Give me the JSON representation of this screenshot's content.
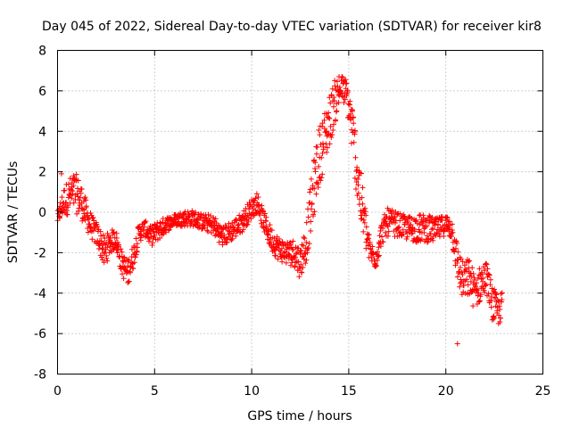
{
  "chart_data": {
    "type": "scatter",
    "title": "Day 045 of 2022, Sidereal Day-to-day VTEC variation (SDTVAR) for receiver kir8",
    "xlabel": "GPS time / hours",
    "ylabel": "SDTVAR / TECUs",
    "xlim": [
      0,
      25
    ],
    "ylim": [
      -8,
      8
    ],
    "xticks": [
      0,
      5,
      10,
      15,
      20,
      25
    ],
    "yticks": [
      -8,
      -6,
      -4,
      -2,
      0,
      2,
      4,
      6,
      8
    ],
    "xtick_labels": [
      "0",
      "5",
      "10",
      "15",
      "20",
      "25"
    ],
    "ytick_labels": [
      "-8",
      "-6",
      "-4",
      "-2",
      "0",
      "2",
      "4",
      "6",
      "8"
    ],
    "grid": true,
    "marker": "+",
    "color": "#ff0000",
    "series": [
      {
        "name": "SDTVAR",
        "envelope_x": [
          0.0,
          0.3,
          0.6,
          0.9,
          1.2,
          1.5,
          1.8,
          2.1,
          2.4,
          2.7,
          3.0,
          3.3,
          3.6,
          3.9,
          4.2,
          4.5,
          4.8,
          5.2,
          5.6,
          6.0,
          6.5,
          7.0,
          7.5,
          8.0,
          8.5,
          9.0,
          9.5,
          10.0,
          10.3,
          10.6,
          11.0,
          11.4,
          11.8,
          12.2,
          12.5,
          12.8,
          13.1,
          13.4,
          13.7,
          14.0,
          14.3,
          14.6,
          14.9,
          15.2,
          15.5,
          15.8,
          16.1,
          16.4,
          16.7,
          17.0,
          17.5,
          18.0,
          18.5,
          19.0,
          19.5,
          20.0,
          20.3,
          20.6,
          20.9,
          21.2,
          21.5,
          21.8,
          22.1,
          22.4,
          22.7,
          22.9
        ],
        "envelope_y": [
          -0.3,
          0.5,
          0.8,
          1.0,
          0.6,
          -0.2,
          -0.8,
          -1.2,
          -2.0,
          -1.5,
          -1.3,
          -2.5,
          -3.0,
          -2.2,
          -1.0,
          -0.8,
          -1.2,
          -0.9,
          -0.6,
          -0.4,
          -0.3,
          -0.3,
          -0.5,
          -0.6,
          -1.2,
          -0.9,
          -0.5,
          0.2,
          0.5,
          -0.4,
          -1.3,
          -1.8,
          -2.0,
          -2.0,
          -2.5,
          -1.5,
          0.5,
          2.5,
          3.5,
          4.5,
          5.5,
          6.2,
          5.8,
          4.0,
          1.5,
          -0.5,
          -2.0,
          -2.3,
          -1.0,
          -0.5,
          -0.6,
          -0.8,
          -0.8,
          -0.8,
          -0.9,
          -0.6,
          -0.8,
          -2.5,
          -3.5,
          -3.2,
          -4.0,
          -3.5,
          -3.2,
          -4.5,
          -5.0,
          -4.5
        ],
        "envelope_spread": [
          0.3,
          0.7,
          0.9,
          1.0,
          0.9,
          0.7,
          0.6,
          0.6,
          0.8,
          0.6,
          0.5,
          0.6,
          0.7,
          0.6,
          0.5,
          0.4,
          0.5,
          0.5,
          0.4,
          0.3,
          0.4,
          0.4,
          0.4,
          0.5,
          0.5,
          0.5,
          0.5,
          0.5,
          0.5,
          0.5,
          0.6,
          0.6,
          0.6,
          0.7,
          0.8,
          1.0,
          1.4,
          1.5,
          1.4,
          1.3,
          1.1,
          0.6,
          0.8,
          1.3,
          1.6,
          1.2,
          0.6,
          0.5,
          0.6,
          0.7,
          0.6,
          0.6,
          0.7,
          0.7,
          0.6,
          0.5,
          0.6,
          1.0,
          1.0,
          1.0,
          0.9,
          0.9,
          0.8,
          0.9,
          0.8,
          0.6
        ],
        "outliers": [
          [
            20.6,
            -6.5
          ],
          [
            0.2,
            1.9
          ],
          [
            14.5,
            6.7
          ]
        ]
      }
    ]
  }
}
